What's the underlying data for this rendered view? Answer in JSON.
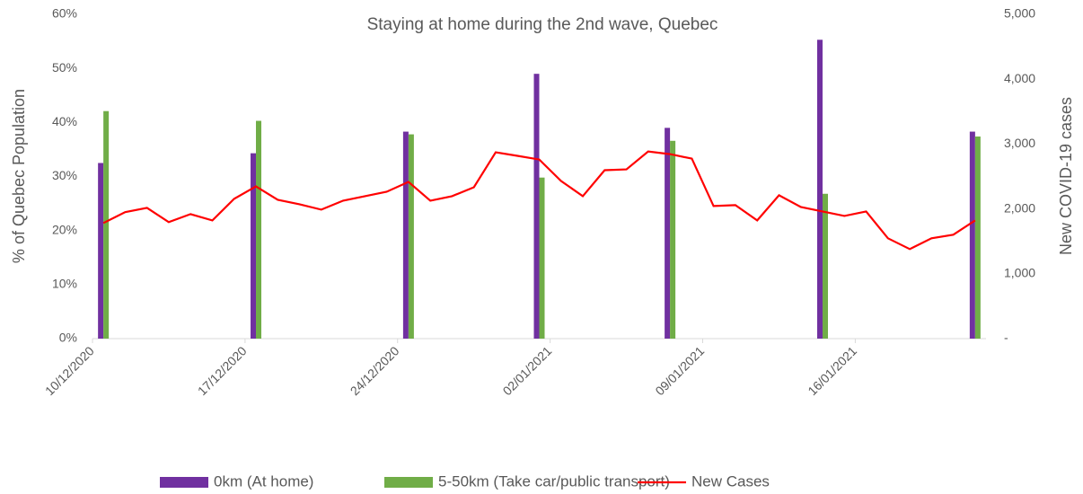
{
  "chart_data": {
    "type": "combo",
    "title": "Staying at home during the 2nd wave, Quebec",
    "ylabel": "% of Quebec Population",
    "y2label": "New COVID-19 cases",
    "categories": [
      "10/12/2020",
      null,
      null,
      null,
      null,
      null,
      null,
      "17/12/2020",
      null,
      null,
      null,
      null,
      null,
      null,
      "24/12/2020",
      null,
      null,
      null,
      null,
      null,
      null,
      "02/01/2021",
      null,
      null,
      null,
      null,
      null,
      null,
      "09/01/2021",
      null,
      null,
      null,
      null,
      null,
      null,
      "16/01/2021",
      null,
      null,
      null,
      null,
      null
    ],
    "ylim": [
      0,
      60
    ],
    "yticks": [
      {
        "value": 0,
        "label": "0%"
      },
      {
        "value": 10,
        "label": "10%"
      },
      {
        "value": 20,
        "label": "20%"
      },
      {
        "value": 30,
        "label": "30%"
      },
      {
        "value": 40,
        "label": "40%"
      },
      {
        "value": 50,
        "label": "50%"
      },
      {
        "value": 60,
        "label": "60%"
      }
    ],
    "y2lim": [
      0,
      5000
    ],
    "y2ticks": [
      {
        "value": 0,
        "label": "-"
      },
      {
        "value": 1000,
        "label": "1,000"
      },
      {
        "value": 2000,
        "label": "2,000"
      },
      {
        "value": 3000,
        "label": "3,000"
      },
      {
        "value": 4000,
        "label": "4,000"
      },
      {
        "value": 5000,
        "label": "5,000"
      }
    ],
    "series": [
      {
        "name": "0km (At home)",
        "type": "bar",
        "color": "#7030a0",
        "values": [
          32.5,
          null,
          null,
          null,
          null,
          null,
          null,
          34.3,
          null,
          null,
          null,
          null,
          null,
          null,
          38.3,
          null,
          null,
          null,
          null,
          null,
          49,
          null,
          null,
          null,
          null,
          null,
          39,
          null,
          null,
          null,
          null,
          null,
          null,
          55.3,
          null,
          null,
          null,
          null,
          null,
          null,
          38.3
        ]
      },
      {
        "name": "5-50km (Take car/public transport)",
        "type": "bar",
        "color": "#70ad47",
        "values": [
          42.1,
          null,
          null,
          null,
          null,
          null,
          null,
          40.3,
          null,
          null,
          null,
          null,
          null,
          null,
          37.8,
          null,
          null,
          null,
          null,
          null,
          29.8,
          null,
          null,
          null,
          null,
          null,
          36.6,
          null,
          null,
          null,
          null,
          null,
          null,
          26.8,
          null,
          null,
          null,
          null,
          null,
          null,
          37.4
        ]
      },
      {
        "name": "New Cases",
        "type": "line",
        "axis": "y2",
        "color": "#ff0000",
        "values": [
          1782,
          1950,
          2017,
          1796,
          1920,
          1823,
          2155,
          2348,
          2141,
          2072,
          1989,
          2127,
          2196,
          2265,
          2417,
          2127,
          2196,
          2334,
          2873,
          2818,
          2762,
          2431,
          2196,
          2597,
          2610,
          2886,
          2845,
          2776,
          2044,
          2058,
          1823,
          2210,
          2030,
          1961,
          1892,
          1961,
          1547,
          1381,
          1547,
          1602,
          1823
        ]
      }
    ],
    "legend": "bottom"
  }
}
